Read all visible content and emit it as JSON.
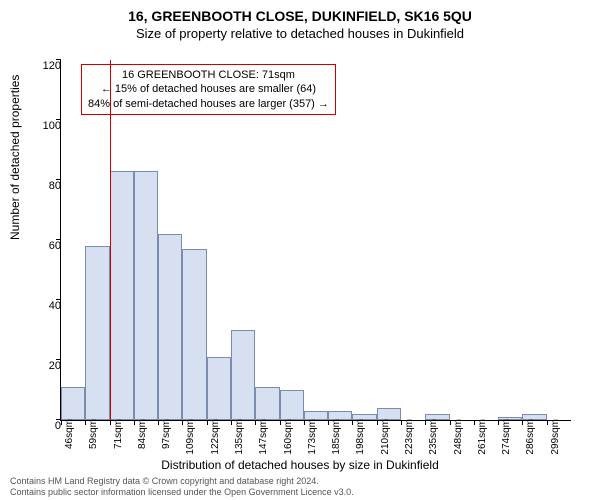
{
  "title": "16, GREENBOOTH CLOSE, DUKINFIELD, SK16 5QU",
  "subtitle": "Size of property relative to detached houses in Dukinfield",
  "ylabel": "Number of detached properties",
  "xlabel": "Distribution of detached houses by size in Dukinfield",
  "annotation": {
    "line1": "16 GREENBOOTH CLOSE: 71sqm",
    "line2": "← 15% of detached houses are smaller (64)",
    "line3": "84% of semi-detached houses are larger (357) →"
  },
  "footer_line1": "Contains HM Land Registry data © Crown copyright and database right 2024.",
  "footer_line2": "Contains public sector information licensed under the Open Government Licence v3.0.",
  "chart": {
    "type": "histogram",
    "ylim": [
      0,
      120
    ],
    "yticks": [
      0,
      20,
      40,
      60,
      80,
      100,
      120
    ],
    "xticks": [
      "46sqm",
      "59sqm",
      "71sqm",
      "84sqm",
      "97sqm",
      "109sqm",
      "122sqm",
      "135sqm",
      "147sqm",
      "160sqm",
      "173sqm",
      "185sqm",
      "198sqm",
      "210sqm",
      "223sqm",
      "235sqm",
      "248sqm",
      "261sqm",
      "274sqm",
      "286sqm",
      "299sqm"
    ],
    "values": [
      11,
      58,
      83,
      83,
      62,
      57,
      21,
      30,
      11,
      10,
      3,
      3,
      2,
      4,
      0,
      2,
      0,
      0,
      1,
      2,
      0
    ],
    "bar_fill": "#d6e0f0",
    "bar_border": "#7a8db0",
    "marker_x_index": 2,
    "marker_color": "#cc0000",
    "background": "#ffffff",
    "title_fontsize": 14,
    "label_fontsize": 12
  }
}
